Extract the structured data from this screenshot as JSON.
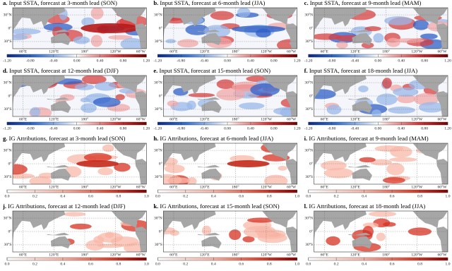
{
  "panels": [
    {
      "label": "a.",
      "title": "Input SSTA, forecast at 3-month lead (SON)",
      "colormap": "diverging"
    },
    {
      "label": "b.",
      "title": "Input SSTA, forecast at 6-month lead (JJA)",
      "colormap": "diverging"
    },
    {
      "label": "c.",
      "title": "Input SSTA, forecast at 9-month lead (MAM)",
      "colormap": "diverging"
    },
    {
      "label": "d.",
      "title": "Input SSTA, forecast at 12-month lead (DJF)",
      "colormap": "diverging"
    },
    {
      "label": "e.",
      "title": "Input SSTA, forecast at 15-month lead (SON)",
      "colormap": "diverging"
    },
    {
      "label": "f.",
      "title": "Input SSTA, forecast at 18-month lead (JJA)",
      "colormap": "diverging"
    },
    {
      "label": "g.",
      "title": "IG Attributions, forecast at 3-month lead (SON)",
      "colormap": "sequential"
    },
    {
      "label": "h.",
      "title": "IG Attributions, forecast at 6-month lead (JJA)",
      "colormap": "sequential"
    },
    {
      "label": "i.",
      "title": "IG Attributions, forecast at 9-month lead (MAM)",
      "colormap": "sequential"
    },
    {
      "label": "j.",
      "title": "IG Attributions, forecast at 12-month lead (DJF)",
      "colormap": "sequential"
    },
    {
      "label": "k.",
      "title": "IG Attributions, forecast at 15-month lead (SON)",
      "colormap": "sequential"
    },
    {
      "label": "l.",
      "title": "IG Attributions, forecast at 18-month lead (JJA)",
      "colormap": "sequential"
    }
  ],
  "lat_labels": [
    "30°N",
    "0°",
    "30°S"
  ],
  "lon_labels": [
    "60°E",
    "120°E",
    "180°",
    "120°W",
    "60°W"
  ],
  "ssta_ticks": [
    "-1.20",
    "-0.80",
    "-0.40",
    "0.00",
    "0.40",
    "0.80",
    "1.20"
  ],
  "ig_ticks": [
    "0.0",
    "0.2",
    "0.4",
    "0.6",
    "0.8",
    "1.0"
  ]
}
